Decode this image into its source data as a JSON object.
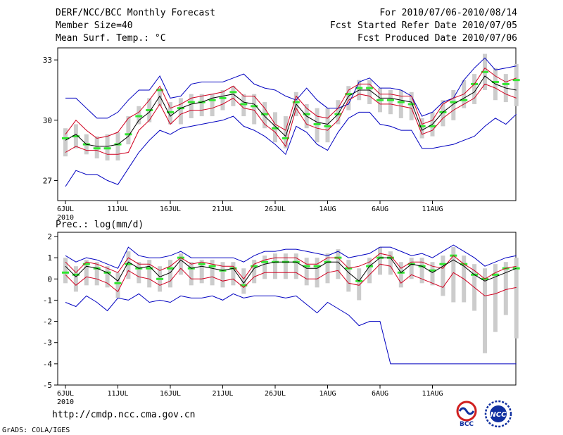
{
  "header": {
    "title": "DERF/NCC/BCC Monthly Forecast",
    "member": "Member Size=40",
    "temp_label": "Mean Surf. Temp.: °C",
    "period": "For 2010/07/06-2010/08/14",
    "refer": "Fcst Started Refer Date 2010/07/05",
    "produced": "Fcst Produced Date 2010/07/06"
  },
  "footer": {
    "url": "http://cmdp.ncc.cma.gov.cn",
    "credit": "GrADS: COLA/IGES"
  },
  "logos": {
    "bcc": "BCC",
    "ncc": "NCC"
  },
  "colors": {
    "upper": "#0000c0",
    "mid": "#d00020",
    "mean": "#000000",
    "ensemble": "#32e632",
    "bar": "#cccccc"
  },
  "chart_data": [
    {
      "type": "line",
      "title": "Mean Surf. Temp.: °C",
      "x_tick_labels": [
        "6JUL",
        "11JUL",
        "16JUL",
        "21JUL",
        "26JUL",
        "1AUG",
        "6AUG",
        "11AUG"
      ],
      "x_year_label": "2010",
      "ylim": [
        26,
        33.6
      ],
      "yticks": [
        27,
        30,
        33
      ],
      "series": [
        {
          "name": "upper",
          "values": [
            31.1,
            31.1,
            30.6,
            30.1,
            30.1,
            30.4,
            31.0,
            31.5,
            31.5,
            32.2,
            31.1,
            31.2,
            31.8,
            31.9,
            31.9,
            31.9,
            32.1,
            32.3,
            31.8,
            31.6,
            31.5,
            31.2,
            31.0,
            31.6,
            31.0,
            30.6,
            30.6,
            30.8,
            31.9,
            32.1,
            31.6,
            31.6,
            31.5,
            31.2,
            30.2,
            30.4,
            30.9,
            31.1,
            32.0,
            32.6,
            33.1,
            32.5,
            32.6,
            32.7
          ]
        },
        {
          "name": "red_upper",
          "values": [
            29.3,
            30.0,
            29.5,
            29.1,
            29.2,
            29.4,
            30.1,
            30.4,
            31.0,
            31.7,
            30.6,
            30.8,
            31.1,
            31.2,
            31.3,
            31.4,
            31.7,
            31.2,
            31.2,
            30.6,
            29.8,
            29.5,
            31.2,
            30.6,
            30.2,
            30.1,
            30.6,
            31.5,
            31.8,
            31.8,
            31.3,
            31.3,
            31.2,
            31.2,
            29.8,
            30.0,
            30.8,
            31.1,
            31.3,
            31.8,
            32.6,
            32.2,
            31.9,
            32.1
          ]
        },
        {
          "name": "mean",
          "values": [
            29.0,
            29.3,
            28.8,
            28.7,
            28.7,
            28.8,
            29.2,
            30.0,
            30.4,
            31.2,
            30.2,
            30.6,
            30.8,
            30.9,
            31.1,
            31.2,
            31.3,
            30.9,
            30.8,
            30.2,
            29.7,
            29.2,
            30.8,
            30.2,
            29.9,
            29.8,
            30.3,
            31.2,
            31.5,
            31.5,
            31.1,
            31.1,
            31.0,
            30.9,
            29.5,
            29.8,
            30.4,
            30.8,
            31.1,
            31.4,
            32.2,
            31.8,
            31.6,
            31.5
          ]
        },
        {
          "name": "red_lower",
          "values": [
            28.4,
            28.7,
            28.5,
            28.5,
            28.3,
            28.3,
            28.4,
            29.5,
            30.0,
            30.8,
            29.8,
            30.3,
            30.5,
            30.5,
            30.6,
            30.8,
            31.1,
            30.6,
            30.5,
            29.8,
            29.4,
            28.7,
            30.6,
            29.8,
            29.6,
            29.5,
            30.0,
            31.0,
            31.3,
            31.2,
            30.8,
            30.8,
            30.7,
            30.6,
            29.3,
            29.5,
            30.1,
            30.5,
            30.8,
            31.1,
            31.8,
            31.6,
            31.3,
            31.1
          ]
        },
        {
          "name": "lower",
          "values": [
            26.7,
            27.5,
            27.3,
            27.3,
            27.0,
            26.8,
            27.6,
            28.4,
            29.0,
            29.5,
            29.3,
            29.6,
            29.7,
            29.8,
            29.9,
            30.0,
            30.2,
            29.7,
            29.5,
            29.2,
            28.8,
            28.3,
            29.7,
            29.4,
            28.8,
            28.5,
            29.4,
            30.1,
            30.4,
            30.4,
            29.8,
            29.7,
            29.5,
            29.5,
            28.6,
            28.6,
            28.7,
            28.8,
            29.0,
            29.2,
            29.7,
            30.1,
            29.8,
            30.3
          ]
        },
        {
          "name": "ensemble",
          "values": [
            29.1,
            29.2,
            28.8,
            28.6,
            28.6,
            28.8,
            29.3,
            30.2,
            30.5,
            31.5,
            30.4,
            30.6,
            30.9,
            30.9,
            31.0,
            31.1,
            31.4,
            30.8,
            30.7,
            30.3,
            29.6,
            29.1,
            30.9,
            30.3,
            29.8,
            29.7,
            30.3,
            31.3,
            31.6,
            31.6,
            31.0,
            31.0,
            30.9,
            30.8,
            29.7,
            29.7,
            30.4,
            30.9,
            31.0,
            31.8,
            32.4,
            31.9,
            31.8,
            32.0
          ]
        },
        {
          "name": "bar_high",
          "values": [
            29.6,
            29.8,
            29.3,
            29.2,
            29.3,
            29.4,
            30.2,
            30.7,
            31.1,
            31.6,
            30.9,
            31.1,
            31.3,
            31.3,
            31.3,
            31.5,
            31.7,
            31.3,
            31.3,
            30.9,
            30.4,
            30.2,
            31.4,
            30.8,
            30.6,
            30.6,
            31.0,
            31.7,
            32.0,
            32.0,
            31.6,
            31.5,
            31.5,
            31.4,
            30.1,
            30.4,
            31.0,
            31.5,
            32.0,
            32.3,
            33.3,
            32.6,
            32.3,
            32.8
          ]
        },
        {
          "name": "bar_low",
          "values": [
            28.2,
            28.6,
            28.3,
            28.1,
            28.0,
            28.0,
            28.8,
            29.8,
            29.9,
            30.7,
            29.8,
            29.8,
            30.1,
            30.2,
            30.2,
            30.5,
            30.7,
            30.2,
            29.8,
            29.6,
            28.9,
            28.6,
            30.2,
            29.6,
            28.9,
            28.9,
            29.8,
            30.5,
            31.0,
            30.8,
            30.4,
            30.3,
            30.1,
            30.0,
            29.1,
            29.2,
            29.7,
            30.0,
            30.6,
            30.8,
            31.5,
            31.0,
            30.9,
            30.7
          ]
        }
      ]
    },
    {
      "type": "line",
      "title": "Prec.: log(mm/d)",
      "x_tick_labels": [
        "6JUL",
        "11JUL",
        "16JUL",
        "21JUL",
        "26JUL",
        "1AUG",
        "6AUG",
        "11AUG"
      ],
      "x_year_label": "2010",
      "ylim": [
        -5,
        2.2
      ],
      "yticks": [
        -5,
        -4,
        -3,
        -2,
        -1,
        0,
        1,
        2
      ],
      "series": [
        {
          "name": "upper",
          "values": [
            1.1,
            0.8,
            1.0,
            0.9,
            0.7,
            0.5,
            1.5,
            1.1,
            1.0,
            1.0,
            1.1,
            1.3,
            1.0,
            1.0,
            1.0,
            1.0,
            1.0,
            0.8,
            1.1,
            1.3,
            1.3,
            1.4,
            1.4,
            1.3,
            1.2,
            1.1,
            1.3,
            1.0,
            1.1,
            1.2,
            1.5,
            1.5,
            1.3,
            1.1,
            1.2,
            1.0,
            1.3,
            1.6,
            1.3,
            1.0,
            0.6,
            0.8,
            1.0,
            1.1
          ]
        },
        {
          "name": "red_upper",
          "values": [
            0.8,
            0.3,
            0.8,
            0.7,
            0.5,
            0.3,
            1.0,
            0.7,
            0.7,
            0.4,
            0.6,
            1.0,
            0.7,
            0.8,
            0.7,
            0.6,
            0.6,
            0.0,
            0.7,
            0.9,
            1.0,
            1.0,
            1.0,
            0.7,
            0.7,
            1.0,
            1.0,
            0.5,
            0.6,
            0.8,
            1.2,
            1.1,
            0.5,
            0.8,
            0.8,
            0.6,
            0.5,
            1.1,
            0.7,
            0.4,
            0.0,
            0.3,
            0.5,
            0.6
          ]
        },
        {
          "name": "mean",
          "values": [
            0.6,
            0.1,
            0.6,
            0.5,
            0.3,
            -0.1,
            0.8,
            0.5,
            0.6,
            0.1,
            0.3,
            0.9,
            0.5,
            0.6,
            0.5,
            0.4,
            0.5,
            -0.2,
            0.5,
            0.7,
            0.8,
            0.8,
            0.8,
            0.5,
            0.5,
            0.8,
            0.8,
            0.3,
            -0.1,
            0.6,
            1.0,
            1.0,
            0.3,
            0.7,
            0.6,
            0.3,
            0.6,
            0.9,
            0.6,
            0.2,
            -0.1,
            0.1,
            0.3,
            0.5
          ]
        },
        {
          "name": "red_lower",
          "values": [
            0.2,
            -0.3,
            0.1,
            0.0,
            -0.2,
            -0.6,
            0.4,
            0.1,
            0.0,
            -0.3,
            -0.1,
            0.5,
            0.0,
            0.0,
            0.1,
            -0.1,
            0.0,
            -0.4,
            0.1,
            0.3,
            0.3,
            0.3,
            0.3,
            0.0,
            0.0,
            0.3,
            0.4,
            -0.2,
            -0.3,
            0.2,
            0.7,
            0.6,
            -0.2,
            0.2,
            0.0,
            -0.2,
            -0.4,
            0.3,
            0.0,
            -0.4,
            -0.8,
            -0.7,
            -0.5,
            -0.4
          ]
        },
        {
          "name": "lower",
          "values": [
            -1.1,
            -1.3,
            -0.8,
            -1.1,
            -1.5,
            -0.9,
            -1.0,
            -0.7,
            -1.1,
            -1.0,
            -1.1,
            -0.8,
            -0.9,
            -0.9,
            -0.8,
            -1.0,
            -0.7,
            -0.9,
            -0.8,
            -0.8,
            -0.8,
            -0.9,
            -0.8,
            -1.2,
            -1.6,
            -1.1,
            -1.4,
            -1.7,
            -2.2,
            -2.0,
            -2.0,
            -4.0,
            -4.0,
            -4.0,
            -4.0,
            -4.0,
            -4.0,
            -4.0,
            -4.0,
            -4.0,
            -4.0,
            -4.0,
            -4.0,
            -4.0
          ]
        },
        {
          "name": "ensemble",
          "values": [
            0.3,
            0.2,
            0.7,
            0.5,
            0.3,
            -0.2,
            0.7,
            0.5,
            0.5,
            0.0,
            0.5,
            1.0,
            0.5,
            0.7,
            0.6,
            0.4,
            0.5,
            -0.3,
            0.6,
            0.8,
            0.8,
            0.8,
            0.8,
            0.6,
            0.6,
            0.8,
            1.0,
            0.5,
            -0.1,
            0.6,
            1.0,
            1.0,
            0.3,
            0.7,
            0.6,
            0.4,
            0.7,
            1.1,
            0.7,
            0.2,
            0.0,
            0.2,
            0.5,
            0.5
          ]
        },
        {
          "name": "bar_high",
          "values": [
            1.0,
            0.6,
            0.9,
            0.8,
            0.6,
            0.3,
            1.3,
            0.8,
            0.9,
            0.6,
            0.9,
            1.2,
            0.8,
            0.9,
            0.9,
            0.8,
            0.8,
            0.5,
            0.9,
            1.1,
            1.2,
            1.2,
            1.2,
            1.0,
            1.0,
            1.2,
            1.4,
            0.9,
            0.5,
            1.0,
            1.5,
            1.3,
            0.8,
            1.0,
            1.0,
            0.8,
            1.1,
            1.5,
            1.1,
            0.7,
            0.5,
            0.7,
            0.8,
            1.0
          ]
        },
        {
          "name": "bar_low",
          "values": [
            -0.2,
            -0.6,
            -0.3,
            -0.3,
            -0.4,
            -0.9,
            0.0,
            -0.2,
            -0.4,
            -0.6,
            -0.4,
            0.2,
            -0.3,
            -0.2,
            -0.3,
            -0.4,
            -0.3,
            -0.7,
            -0.2,
            0.0,
            0.0,
            0.0,
            0.0,
            -0.3,
            -0.4,
            -0.2,
            0.0,
            -0.6,
            -1.0,
            -0.2,
            0.2,
            0.2,
            -0.4,
            0.0,
            -0.2,
            -0.3,
            -0.8,
            -1.1,
            -1.1,
            -1.5,
            -3.5,
            -2.5,
            -1.7,
            -2.8
          ]
        }
      ]
    }
  ]
}
